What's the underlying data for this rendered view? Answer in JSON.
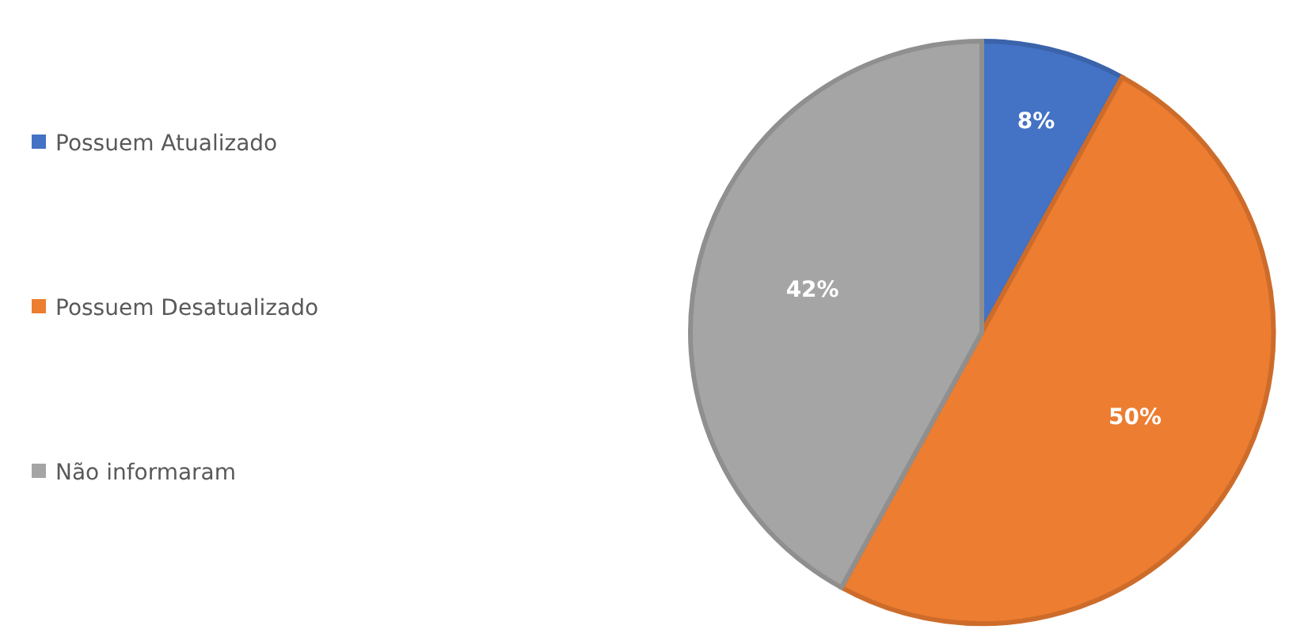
{
  "chart_data": {
    "type": "pie",
    "categories": [
      "Possuem Atualizado",
      "Possuem Desatualizado",
      "Não informaram"
    ],
    "values": [
      8,
      50,
      42
    ],
    "colors": [
      "#4472c4",
      "#ed7d31",
      "#a5a5a5"
    ],
    "value_labels": [
      "8%",
      "50%",
      "42%"
    ],
    "legend": "left"
  }
}
